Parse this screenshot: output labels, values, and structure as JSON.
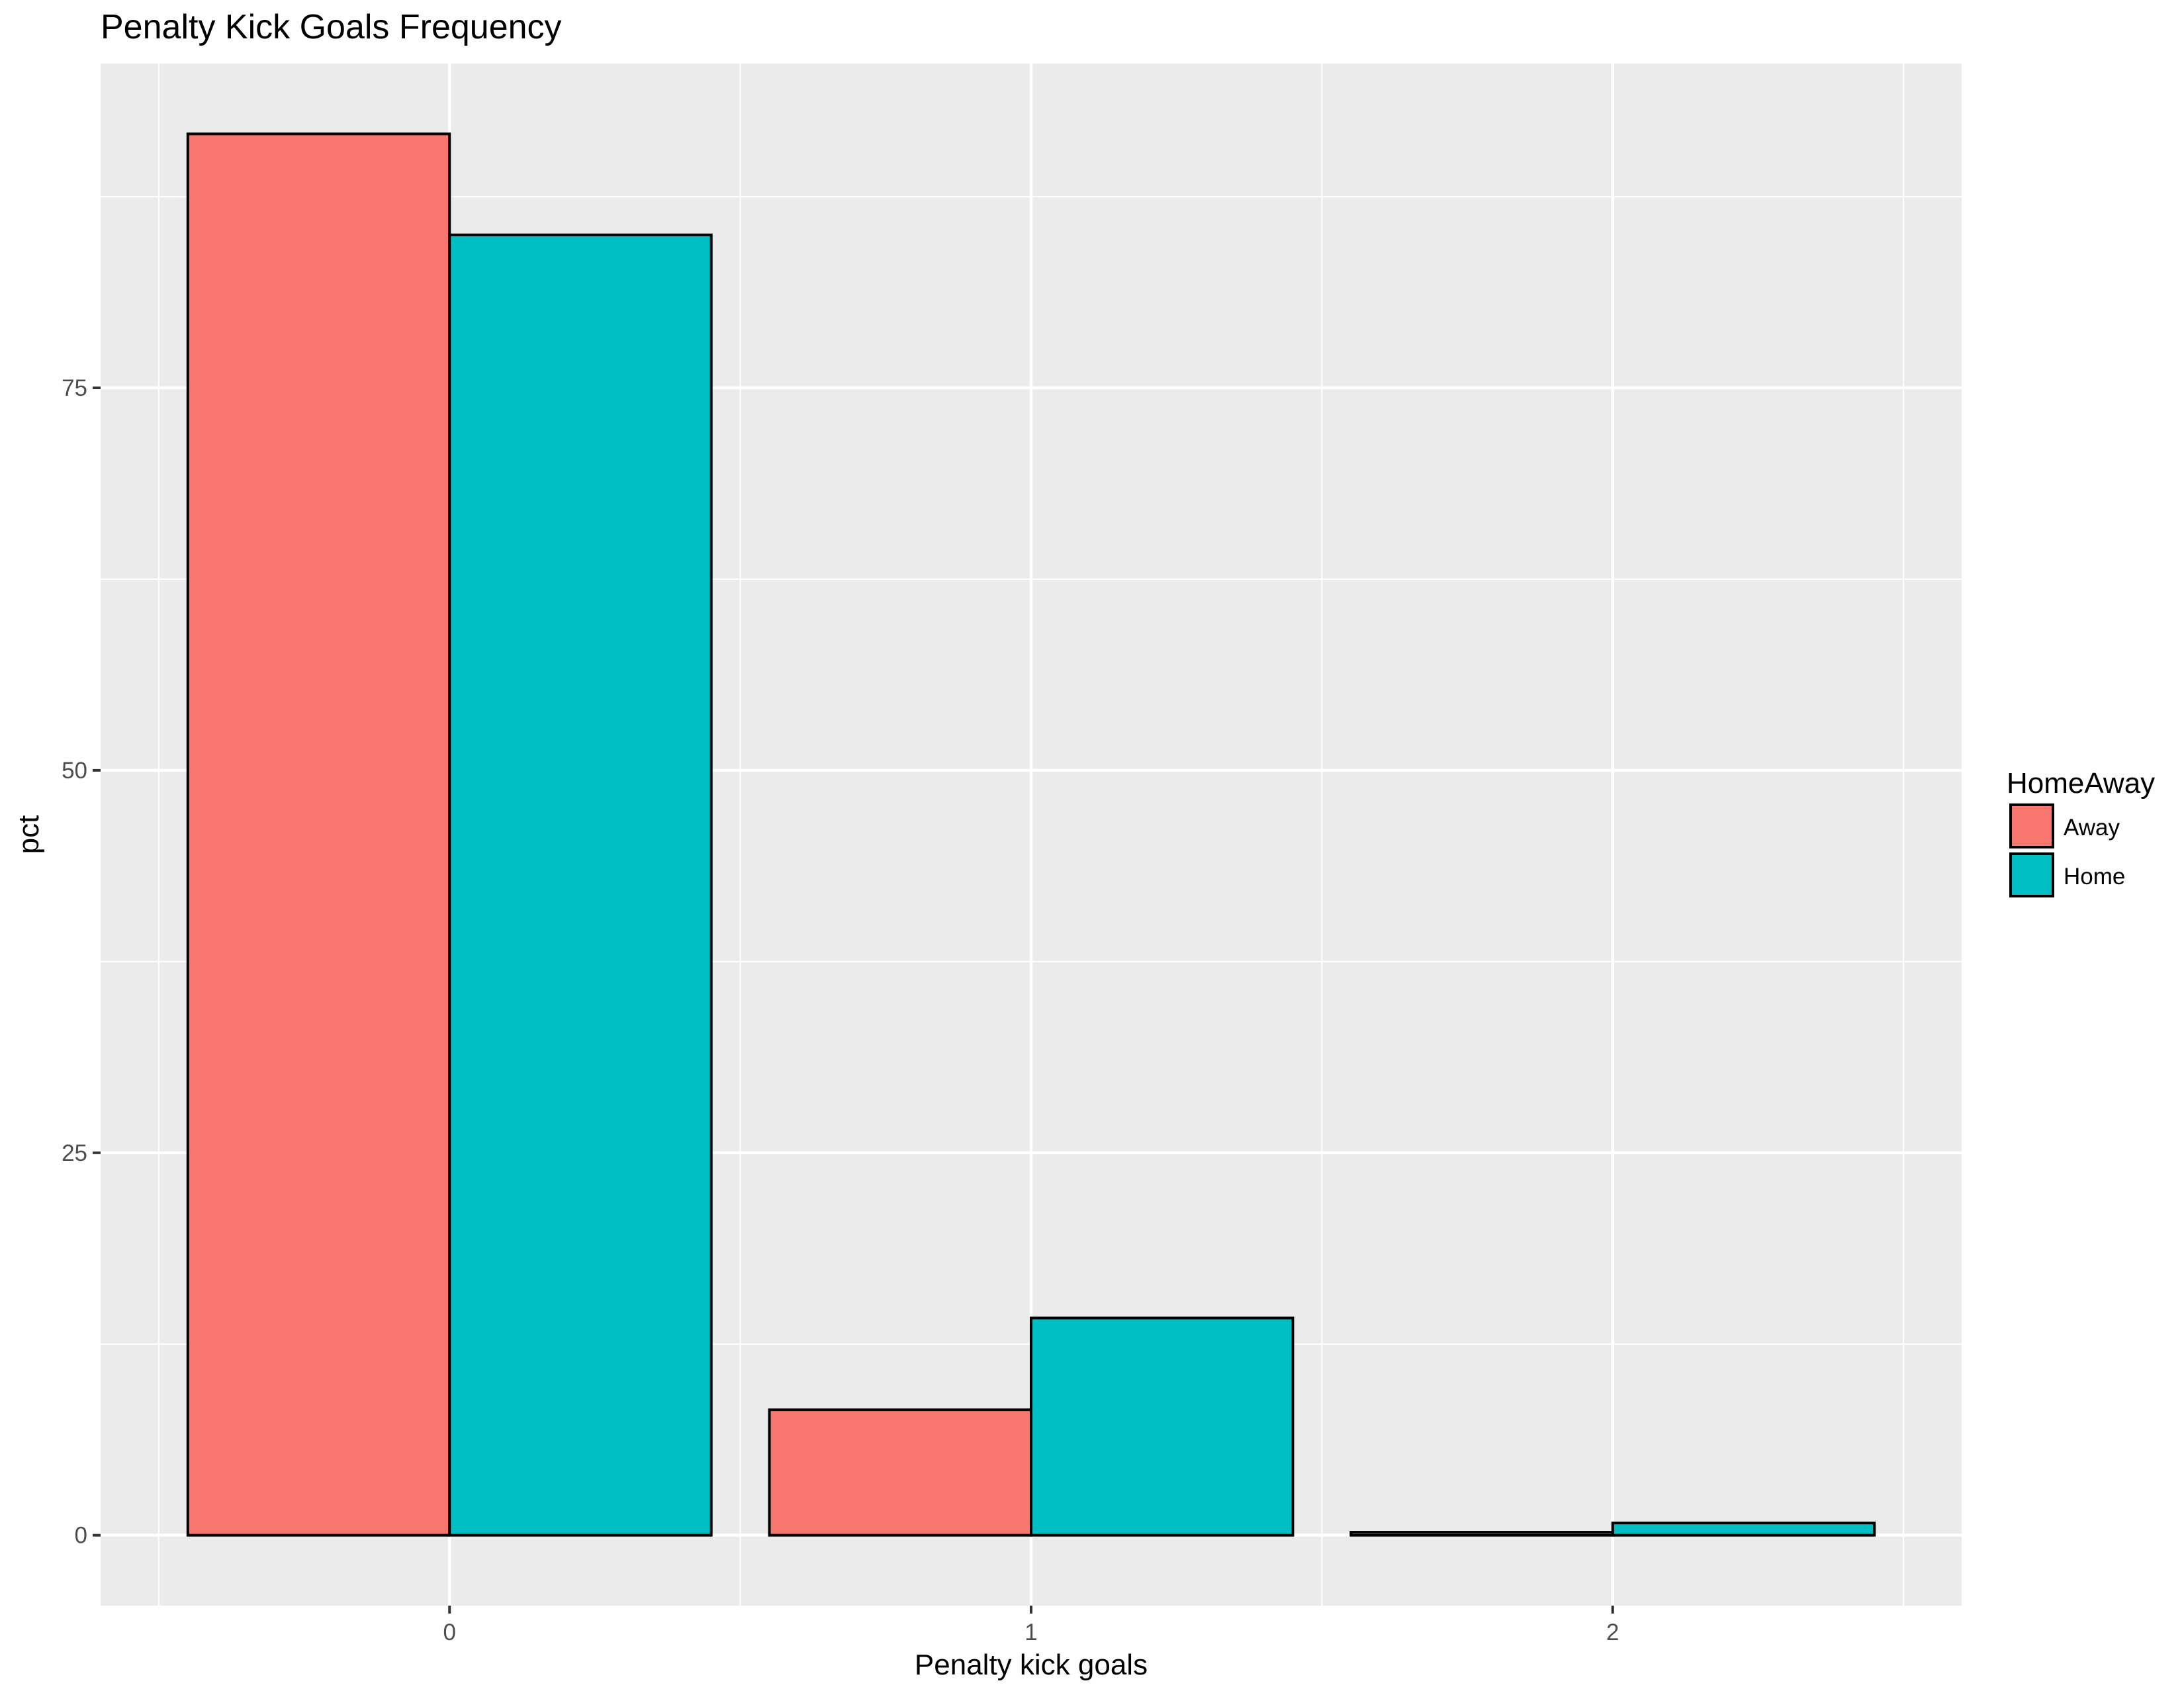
{
  "chart_data": {
    "type": "bar",
    "title": "Penalty Kick Goals Frequency",
    "xlabel": "Penalty kick goals",
    "ylabel": "pct",
    "categories": [
      "0",
      "1",
      "2"
    ],
    "series": [
      {
        "name": "Away",
        "values": [
          91.6,
          8.2,
          0.2
        ],
        "color": "#F8766D"
      },
      {
        "name": "Home",
        "values": [
          85.0,
          14.2,
          0.8
        ],
        "color": "#00BFC4"
      }
    ],
    "yticks": [
      0,
      25,
      50,
      75
    ],
    "ylim": [
      -4.6,
      96.2
    ],
    "grid": true,
    "panel_background": "#EBEBEB",
    "bar_outline": "#000000",
    "legend": {
      "title": "HomeAway",
      "position": "right",
      "entries": [
        "Away",
        "Home"
      ]
    }
  }
}
